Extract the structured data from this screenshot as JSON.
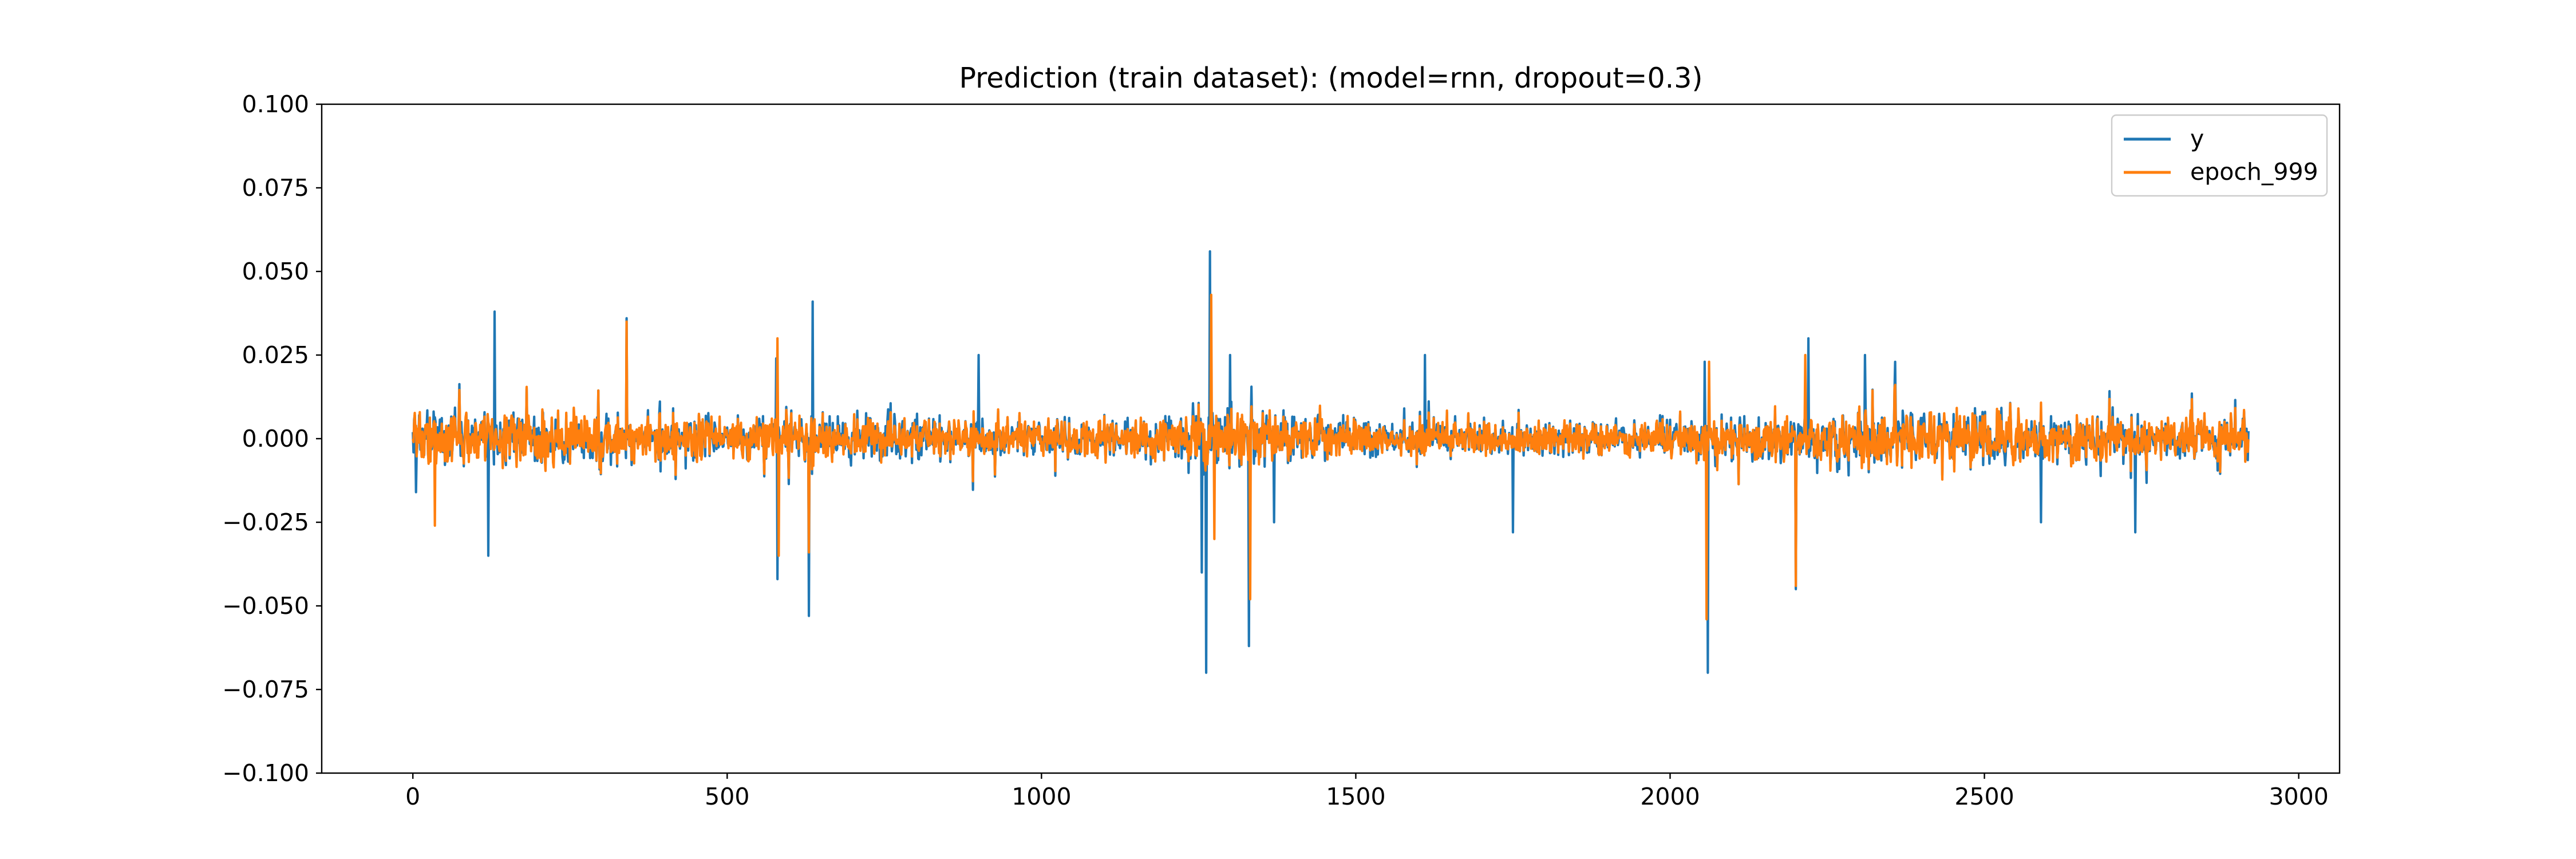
{
  "chart_data": {
    "type": "line",
    "title": "Prediction (train dataset): (model=rnn, dropout=0.3)",
    "xlabel": "",
    "ylabel": "",
    "xlim": [
      -145,
      3065
    ],
    "ylim": [
      -0.1,
      0.1
    ],
    "x_ticks": [
      0,
      500,
      1000,
      1500,
      2000,
      2500,
      3000
    ],
    "x_tick_labels": [
      "0",
      "500",
      "1000",
      "1500",
      "2000",
      "2500",
      "3000"
    ],
    "y_ticks": [
      0.1,
      0.075,
      0.05,
      0.025,
      0.0,
      -0.025,
      -0.05,
      -0.075,
      -0.1
    ],
    "y_tick_labels": [
      "0.100",
      "0.075",
      "0.050",
      "0.025",
      "0.000",
      "−0.025",
      "−0.050",
      "−0.075",
      "−0.100"
    ],
    "grid": false,
    "legend_position": "top-right",
    "x_range": [
      0,
      2920
    ],
    "noise_envelope": [
      {
        "x": 0,
        "amp": 0.012
      },
      {
        "x": 250,
        "amp": 0.013
      },
      {
        "x": 550,
        "amp": 0.011
      },
      {
        "x": 750,
        "amp": 0.012
      },
      {
        "x": 1000,
        "amp": 0.009
      },
      {
        "x": 1150,
        "amp": 0.009
      },
      {
        "x": 1270,
        "amp": 0.016
      },
      {
        "x": 1400,
        "amp": 0.011
      },
      {
        "x": 1600,
        "amp": 0.008
      },
      {
        "x": 1900,
        "amp": 0.008
      },
      {
        "x": 2100,
        "amp": 0.011
      },
      {
        "x": 2250,
        "amp": 0.014
      },
      {
        "x": 2500,
        "amp": 0.013
      },
      {
        "x": 2700,
        "amp": 0.011
      },
      {
        "x": 2920,
        "amp": 0.01
      }
    ],
    "series": [
      {
        "name": "y",
        "color": "#1f77b4",
        "scale": 1.0,
        "spikes": [
          {
            "x": 5,
            "y": -0.016
          },
          {
            "x": 130,
            "y": 0.038
          },
          {
            "x": 120,
            "y": -0.035
          },
          {
            "x": 340,
            "y": 0.036
          },
          {
            "x": 580,
            "y": -0.042
          },
          {
            "x": 578,
            "y": 0.024
          },
          {
            "x": 630,
            "y": -0.053
          },
          {
            "x": 636,
            "y": 0.041
          },
          {
            "x": 900,
            "y": 0.025
          },
          {
            "x": 1255,
            "y": -0.04
          },
          {
            "x": 1262,
            "y": -0.07
          },
          {
            "x": 1268,
            "y": 0.056
          },
          {
            "x": 1300,
            "y": 0.025
          },
          {
            "x": 1330,
            "y": -0.062
          },
          {
            "x": 1370,
            "y": -0.025
          },
          {
            "x": 1610,
            "y": 0.025
          },
          {
            "x": 1750,
            "y": -0.028
          },
          {
            "x": 2060,
            "y": -0.07
          },
          {
            "x": 2055,
            "y": 0.023
          },
          {
            "x": 2200,
            "y": -0.045
          },
          {
            "x": 2220,
            "y": 0.03
          },
          {
            "x": 2310,
            "y": 0.025
          },
          {
            "x": 2590,
            "y": -0.025
          },
          {
            "x": 2740,
            "y": -0.028
          }
        ]
      },
      {
        "name": "epoch_999",
        "color": "#ff7f0e",
        "scale": 0.82,
        "spikes": [
          {
            "x": 35,
            "y": -0.026
          },
          {
            "x": 340,
            "y": 0.035
          },
          {
            "x": 580,
            "y": 0.03
          },
          {
            "x": 582,
            "y": -0.035
          },
          {
            "x": 630,
            "y": -0.034
          },
          {
            "x": 1270,
            "y": 0.043
          },
          {
            "x": 1275,
            "y": -0.03
          },
          {
            "x": 1332,
            "y": -0.048
          },
          {
            "x": 2058,
            "y": -0.054
          },
          {
            "x": 2062,
            "y": 0.023
          },
          {
            "x": 2200,
            "y": -0.044
          },
          {
            "x": 2215,
            "y": 0.025
          }
        ]
      }
    ]
  }
}
